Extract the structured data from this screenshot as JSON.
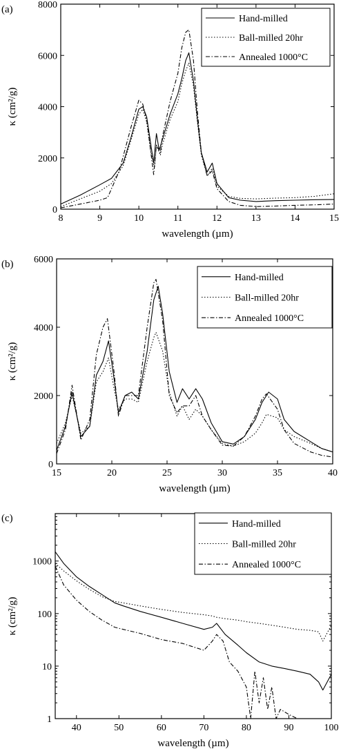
{
  "chart_data": [
    {
      "panel_label": "(a)",
      "type": "line",
      "xlabel": "wavelength (µm)",
      "ylabel": "κ (cm²/g)",
      "y_scale": "linear",
      "xlim": [
        8,
        15
      ],
      "ylim": [
        0,
        8000
      ],
      "x_ticks": [
        8,
        9,
        10,
        11,
        12,
        13,
        14,
        15
      ],
      "y_ticks": [
        0,
        2000,
        4000,
        6000,
        8000
      ],
      "legend_position": "top-right",
      "legend": [
        "Hand-milled",
        "Ball-milled 20hr",
        "Annealed 1000°C"
      ],
      "series": [
        {
          "name": "Hand-milled",
          "style": "solid",
          "x": [
            8,
            8.5,
            9,
            9.3,
            9.6,
            9.8,
            10.0,
            10.1,
            10.2,
            10.3,
            10.38,
            10.45,
            10.52,
            10.6,
            10.8,
            11.0,
            11.1,
            11.2,
            11.28,
            11.4,
            11.5,
            11.6,
            11.75,
            11.88,
            12.0,
            12.3,
            12.6,
            13,
            13.5,
            14,
            14.5,
            15
          ],
          "y": [
            200,
            550,
            950,
            1200,
            1800,
            2800,
            3900,
            4000,
            3600,
            2600,
            1800,
            2950,
            2300,
            2700,
            3700,
            4500,
            5100,
            5800,
            6100,
            5000,
            3500,
            2200,
            1450,
            1800,
            1000,
            450,
            350,
            300,
            330,
            350,
            370,
            380
          ]
        },
        {
          "name": "Ball-milled 20hr",
          "style": "dotted",
          "x": [
            8,
            8.5,
            9,
            9.3,
            9.6,
            9.8,
            10.0,
            10.1,
            10.2,
            10.3,
            10.4,
            10.45,
            10.55,
            10.6,
            10.8,
            11.0,
            11.1,
            11.2,
            11.28,
            11.4,
            11.5,
            11.6,
            11.75,
            11.88,
            12.0,
            12.3,
            12.6,
            13,
            13.5,
            14,
            14.5,
            15
          ],
          "y": [
            100,
            400,
            700,
            1000,
            1700,
            2700,
            3700,
            3900,
            3400,
            2300,
            1600,
            2500,
            2100,
            2500,
            3500,
            4200,
            4900,
            5400,
            5700,
            4800,
            3400,
            2100,
            1300,
            1600,
            900,
            500,
            420,
            400,
            430,
            450,
            500,
            600
          ]
        },
        {
          "name": "Annealed 1000°C",
          "style": "dashdot",
          "x": [
            8,
            8.5,
            9,
            9.2,
            9.5,
            9.8,
            10.0,
            10.1,
            10.2,
            10.3,
            10.38,
            10.45,
            10.55,
            10.6,
            10.8,
            11.0,
            11.1,
            11.2,
            11.28,
            11.4,
            11.5,
            11.6,
            11.75,
            11.88,
            12.0,
            12.3,
            12.6,
            13,
            13.5,
            14,
            14.5,
            15
          ],
          "y": [
            50,
            200,
            350,
            450,
            1500,
            3200,
            4250,
            4100,
            3500,
            2300,
            1350,
            2500,
            2200,
            2800,
            4200,
            5300,
            6300,
            6900,
            7000,
            5800,
            3800,
            2200,
            1300,
            1500,
            800,
            300,
            150,
            100,
            120,
            150,
            170,
            200
          ]
        }
      ]
    },
    {
      "panel_label": "(b)",
      "type": "line",
      "xlabel": "wavelength (µm)",
      "ylabel": "κ (cm²/g)",
      "y_scale": "linear",
      "xlim": [
        15,
        40
      ],
      "ylim": [
        0,
        6000
      ],
      "x_ticks": [
        15,
        20,
        25,
        30,
        35,
        40
      ],
      "y_ticks": [
        0,
        2000,
        4000,
        6000
      ],
      "legend_position": "top-right",
      "legend": [
        "Hand-milled",
        "Ball-milled 20hr",
        "Annealed 1000°C"
      ],
      "series": [
        {
          "name": "Hand-milled",
          "style": "solid",
          "x": [
            15,
            15.8,
            16.4,
            17.2,
            18,
            18.6,
            19.2,
            19.7,
            20.2,
            20.6,
            21.2,
            21.8,
            22.4,
            23.2,
            23.8,
            24.2,
            24.6,
            25.2,
            25.9,
            26.4,
            27.0,
            27.6,
            28.2,
            29,
            30,
            31,
            32,
            33,
            33.6,
            34.2,
            35,
            35.6,
            36.5,
            38,
            39,
            40
          ],
          "y": [
            400,
            1100,
            2100,
            800,
            1100,
            2600,
            3000,
            3600,
            2500,
            1500,
            2000,
            2100,
            1900,
            3300,
            4800,
            5200,
            4400,
            2700,
            1800,
            2200,
            1900,
            2200,
            1900,
            1200,
            650,
            580,
            800,
            1300,
            1800,
            2100,
            1900,
            1300,
            950,
            650,
            450,
            350
          ]
        },
        {
          "name": "Ball-milled 20hr",
          "style": "dotted",
          "x": [
            15,
            15.8,
            16.4,
            17.2,
            18,
            18.6,
            19.2,
            19.7,
            20.2,
            20.6,
            21.2,
            21.8,
            22.4,
            23.2,
            23.8,
            24.0,
            24.6,
            25.2,
            25.9,
            26.4,
            27.0,
            27.6,
            28.2,
            29,
            30,
            31,
            32,
            33,
            33.6,
            34.0,
            35,
            35.6,
            36.5,
            38,
            39,
            40
          ],
          "y": [
            600,
            1200,
            2000,
            900,
            1100,
            2400,
            2700,
            3100,
            2200,
            1600,
            1900,
            1900,
            1800,
            3000,
            3700,
            3850,
            3300,
            2100,
            1400,
            1700,
            1300,
            1600,
            1400,
            1000,
            600,
            520,
            650,
            900,
            1200,
            1450,
            1350,
            1000,
            800,
            600,
            450,
            350
          ]
        },
        {
          "name": "Annealed 1000°C",
          "style": "dashdot",
          "x": [
            15,
            15.8,
            16.4,
            17.2,
            18,
            18.6,
            19.2,
            19.6,
            20.2,
            20.6,
            21.2,
            21.8,
            22.4,
            23.2,
            23.8,
            24.0,
            24.6,
            25.2,
            25.9,
            26.4,
            27.0,
            27.6,
            28.2,
            29,
            30,
            31,
            32,
            33,
            33.6,
            34.0,
            35,
            35.6,
            36.5,
            38,
            39,
            40
          ],
          "y": [
            300,
            1000,
            2300,
            700,
            1300,
            3200,
            4000,
            4250,
            2700,
            1400,
            2000,
            2000,
            2000,
            4000,
            5300,
            5400,
            4200,
            2000,
            1500,
            1700,
            1700,
            2000,
            1400,
            1000,
            550,
            520,
            800,
            1400,
            1900,
            2050,
            1600,
            1000,
            600,
            350,
            250,
            200
          ]
        }
      ]
    },
    {
      "panel_label": "(c)",
      "type": "line",
      "xlabel": "wavelength (µm)",
      "ylabel": "κ (cm²/g)",
      "y_scale": "log",
      "xlim": [
        35,
        100
      ],
      "ylim": [
        1,
        8000
      ],
      "x_ticks": [
        40,
        50,
        60,
        70,
        80,
        90,
        100
      ],
      "y_ticks": [
        1,
        10,
        100,
        1000
      ],
      "legend_position": "top-right",
      "legend": [
        "Hand-milled",
        "Ball-milled 20hr",
        "Annealed 1000°C"
      ],
      "series": [
        {
          "name": "Hand-milled",
          "style": "solid",
          "x": [
            35,
            37,
            40,
            43,
            46,
            49,
            51,
            55,
            60,
            65,
            70,
            72,
            73,
            75,
            78,
            80,
            83,
            86,
            89,
            92,
            95,
            97,
            98,
            100
          ],
          "y": [
            1500,
            900,
            500,
            330,
            230,
            160,
            140,
            110,
            85,
            65,
            50,
            55,
            65,
            40,
            25,
            18,
            12,
            10,
            9,
            8,
            7,
            5,
            3.5,
            7
          ]
        },
        {
          "name": "Ball-milled 20hr",
          "style": "dotted",
          "x": [
            35,
            37,
            40,
            43,
            46,
            49,
            51,
            55,
            60,
            65,
            70,
            72,
            73,
            75,
            78,
            80,
            83,
            86,
            89,
            92,
            95,
            97,
            98,
            100
          ],
          "y": [
            900,
            650,
            420,
            290,
            210,
            170,
            160,
            140,
            120,
            105,
            95,
            90,
            85,
            80,
            75,
            70,
            65,
            60,
            55,
            50,
            48,
            45,
            30,
            60
          ]
        },
        {
          "name": "Annealed 1000°C",
          "style": "dashdot",
          "x": [
            35,
            37,
            40,
            43,
            46,
            49,
            51,
            55,
            60,
            65,
            70,
            72,
            73,
            74.5,
            76,
            78,
            80,
            81,
            82,
            83,
            84,
            85,
            86,
            87,
            88,
            90,
            92
          ],
          "y": [
            800,
            350,
            180,
            110,
            75,
            55,
            50,
            42,
            32,
            27,
            20,
            30,
            40,
            30,
            12,
            8,
            4,
            1,
            8,
            2,
            6,
            1.5,
            4,
            1,
            1.5,
            1.2,
            1
          ]
        }
      ]
    }
  ]
}
